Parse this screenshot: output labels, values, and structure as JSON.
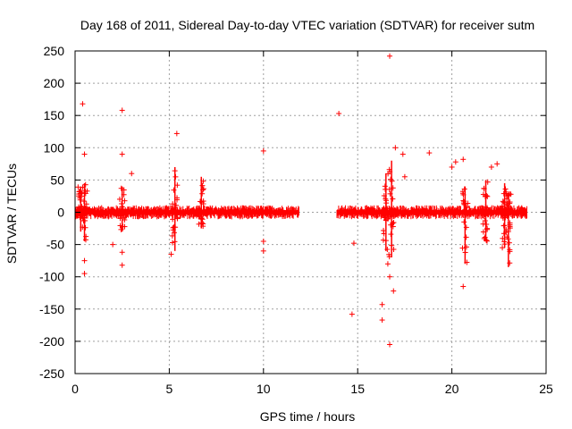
{
  "chart_data": {
    "type": "scatter",
    "title": "Day 168 of 2011, Sidereal Day-to-day VTEC variation (SDTVAR) for receiver sutm",
    "xlabel": "GPS time / hours",
    "ylabel": "SDTVAR / TECUs",
    "xlim": [
      0,
      25
    ],
    "ylim": [
      -250,
      250
    ],
    "xticks": [
      0,
      5,
      10,
      15,
      20,
      25
    ],
    "yticks": [
      -250,
      -200,
      -150,
      -100,
      -50,
      0,
      50,
      100,
      150,
      200,
      250
    ],
    "grid": true,
    "marker": "+",
    "color": "#ff0000",
    "data_gap_hours": [
      11.9,
      13.9
    ],
    "series": [
      {
        "name": "SDTVAR",
        "dense_band": {
          "segments": [
            [
              0.0,
              11.9
            ],
            [
              13.9,
              24.0
            ]
          ],
          "typical_spread": 5
        },
        "spikes": [
          {
            "x": 0.3,
            "min": -30,
            "max": 40
          },
          {
            "x": 0.5,
            "min": -45,
            "max": 45
          },
          {
            "x": 2.5,
            "min": -30,
            "max": 40
          },
          {
            "x": 5.3,
            "min": -60,
            "max": 70
          },
          {
            "x": 6.7,
            "min": -25,
            "max": 55
          },
          {
            "x": 16.5,
            "min": -60,
            "max": 60
          },
          {
            "x": 16.8,
            "min": -70,
            "max": 80
          },
          {
            "x": 20.7,
            "min": -80,
            "max": 40
          },
          {
            "x": 21.8,
            "min": -45,
            "max": 50
          },
          {
            "x": 22.8,
            "min": -55,
            "max": 45
          },
          {
            "x": 23.0,
            "min": -85,
            "max": 30
          }
        ],
        "outliers": [
          {
            "x": 0.4,
            "y": 168
          },
          {
            "x": 0.5,
            "y": 90
          },
          {
            "x": 0.5,
            "y": -75
          },
          {
            "x": 0.5,
            "y": -95
          },
          {
            "x": 2.0,
            "y": -50
          },
          {
            "x": 2.5,
            "y": 158
          },
          {
            "x": 2.5,
            "y": 90
          },
          {
            "x": 2.5,
            "y": -62
          },
          {
            "x": 2.5,
            "y": -82
          },
          {
            "x": 3.0,
            "y": 60
          },
          {
            "x": 5.4,
            "y": 122
          },
          {
            "x": 5.1,
            "y": -65
          },
          {
            "x": 10.0,
            "y": 95
          },
          {
            "x": 10.0,
            "y": -45
          },
          {
            "x": 10.0,
            "y": -60
          },
          {
            "x": 14.0,
            "y": 153
          },
          {
            "x": 14.8,
            "y": -48
          },
          {
            "x": 14.7,
            "y": -158
          },
          {
            "x": 16.3,
            "y": -143
          },
          {
            "x": 16.3,
            "y": -167
          },
          {
            "x": 16.7,
            "y": 242
          },
          {
            "x": 16.7,
            "y": -205
          },
          {
            "x": 16.9,
            "y": -122
          },
          {
            "x": 16.6,
            "y": -80
          },
          {
            "x": 16.7,
            "y": -100
          },
          {
            "x": 17.0,
            "y": 100
          },
          {
            "x": 17.4,
            "y": 90
          },
          {
            "x": 17.5,
            "y": 55
          },
          {
            "x": 18.8,
            "y": 92
          },
          {
            "x": 20.0,
            "y": 70
          },
          {
            "x": 20.2,
            "y": 78
          },
          {
            "x": 20.6,
            "y": 82
          },
          {
            "x": 20.6,
            "y": -115
          },
          {
            "x": 22.4,
            "y": 75
          },
          {
            "x": 22.1,
            "y": 70
          }
        ]
      }
    ]
  }
}
